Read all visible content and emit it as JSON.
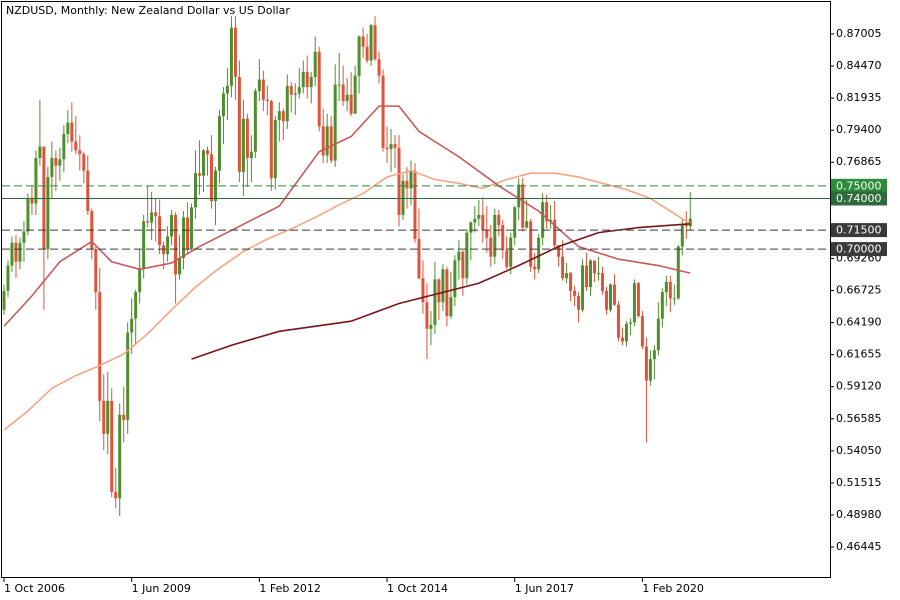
{
  "chart_data": {
    "type": "candlestick",
    "title": "NZDUSD, Monthly:  New Zealand Dollar vs US Dollar",
    "x": [
      "2006-10",
      "2006-11",
      "2006-12",
      "2007-01",
      "2007-02",
      "2007-03",
      "2007-04",
      "2007-05",
      "2007-06",
      "2007-07",
      "2007-08",
      "2007-09",
      "2007-10",
      "2007-11",
      "2007-12",
      "2008-01",
      "2008-02",
      "2008-03",
      "2008-04",
      "2008-05",
      "2008-06",
      "2008-07",
      "2008-08",
      "2008-09",
      "2008-10",
      "2008-11",
      "2008-12",
      "2009-01",
      "2009-02",
      "2009-03",
      "2009-04",
      "2009-05",
      "2009-06",
      "2009-07",
      "2009-08",
      "2009-09",
      "2009-10",
      "2009-11",
      "2009-12",
      "2010-01",
      "2010-02",
      "2010-03",
      "2010-04",
      "2010-05",
      "2010-06",
      "2010-07",
      "2010-08",
      "2010-09",
      "2010-10",
      "2010-11",
      "2010-12",
      "2011-01",
      "2011-02",
      "2011-03",
      "2011-04",
      "2011-05",
      "2011-06",
      "2011-07",
      "2011-08",
      "2011-09",
      "2011-10",
      "2011-11",
      "2011-12",
      "2012-01",
      "2012-02",
      "2012-03",
      "2012-04",
      "2012-05",
      "2012-06",
      "2012-07",
      "2012-08",
      "2012-09",
      "2012-10",
      "2012-11",
      "2012-12",
      "2013-01",
      "2013-02",
      "2013-03",
      "2013-04",
      "2013-05",
      "2013-06",
      "2013-07",
      "2013-08",
      "2013-09",
      "2013-10",
      "2013-11",
      "2013-12",
      "2014-01",
      "2014-02",
      "2014-03",
      "2014-04",
      "2014-05",
      "2014-06",
      "2014-07",
      "2014-08",
      "2014-09",
      "2014-10",
      "2014-11",
      "2014-12",
      "2015-01",
      "2015-02",
      "2015-03",
      "2015-04",
      "2015-05",
      "2015-06",
      "2015-07",
      "2015-08",
      "2015-09",
      "2015-10",
      "2015-11",
      "2015-12",
      "2016-01",
      "2016-02",
      "2016-03",
      "2016-04",
      "2016-05",
      "2016-06",
      "2016-07",
      "2016-08",
      "2016-09",
      "2016-10",
      "2016-11",
      "2016-12",
      "2017-01",
      "2017-02",
      "2017-03",
      "2017-04",
      "2017-05",
      "2017-06",
      "2017-07",
      "2017-08",
      "2017-09",
      "2017-10",
      "2017-11",
      "2017-12",
      "2018-01",
      "2018-02",
      "2018-03",
      "2018-04",
      "2018-05",
      "2018-06",
      "2018-07",
      "2018-08",
      "2018-09",
      "2018-10",
      "2018-11",
      "2018-12",
      "2019-01",
      "2019-02",
      "2019-03",
      "2019-04",
      "2019-05",
      "2019-06",
      "2019-07",
      "2019-08",
      "2019-09",
      "2019-10",
      "2019-11",
      "2019-12",
      "2020-01",
      "2020-02",
      "2020-03",
      "2020-04",
      "2020-05",
      "2020-06",
      "2020-07",
      "2020-08",
      "2020-09",
      "2020-10",
      "2020-11",
      "2020-12",
      "2021-01",
      "2021-02"
    ],
    "open": [
      0.652,
      0.667,
      0.687,
      0.705,
      0.69,
      0.705,
      0.714,
      0.74,
      0.736,
      0.772,
      0.781,
      0.7,
      0.757,
      0.772,
      0.766,
      0.771,
      0.791,
      0.8,
      0.785,
      0.778,
      0.775,
      0.762,
      0.73,
      0.7,
      0.666,
      0.58,
      0.554,
      0.58,
      0.508,
      0.503,
      0.569,
      0.565,
      0.634,
      0.645,
      0.666,
      0.685,
      0.722,
      0.721,
      0.729,
      0.726,
      0.703,
      0.696,
      0.71,
      0.727,
      0.68,
      0.693,
      0.725,
      0.7,
      0.733,
      0.76,
      0.758,
      0.778,
      0.775,
      0.738,
      0.762,
      0.805,
      0.823,
      0.829,
      0.875,
      0.836,
      0.761,
      0.803,
      0.772,
      0.777,
      0.825,
      0.834,
      0.818,
      0.817,
      0.756,
      0.802,
      0.809,
      0.801,
      0.829,
      0.822,
      0.823,
      0.828,
      0.84,
      0.828,
      0.836,
      0.856,
      0.797,
      0.774,
      0.797,
      0.77,
      0.83,
      0.83,
      0.817,
      0.822,
      0.807,
      0.837,
      0.868,
      0.86,
      0.849,
      0.877,
      0.85,
      0.837,
      0.78,
      0.779,
      0.783,
      0.78,
      0.727,
      0.754,
      0.748,
      0.762,
      0.708,
      0.677,
      0.658,
      0.637,
      0.64,
      0.676,
      0.658,
      0.684,
      0.647,
      0.662,
      0.691,
      0.698,
      0.677,
      0.713,
      0.721,
      0.724,
      0.727,
      0.715,
      0.709,
      0.694,
      0.727,
      0.719,
      0.699,
      0.686,
      0.709,
      0.733,
      0.751,
      0.717,
      0.722,
      0.686,
      0.684,
      0.709,
      0.737,
      0.722,
      0.723,
      0.703,
      0.694,
      0.677,
      0.681,
      0.667,
      0.663,
      0.652,
      0.687,
      0.67,
      0.691,
      0.681,
      0.681,
      0.667,
      0.652,
      0.672,
      0.656,
      0.63,
      0.627,
      0.641,
      0.642,
      0.673,
      0.647,
      0.623,
      0.596,
      0.613,
      0.62,
      0.645,
      0.666,
      0.674,
      0.661,
      0.661,
      0.702,
      0.719,
      0.718
    ],
    "high": [
      0.672,
      0.691,
      0.71,
      0.711,
      0.709,
      0.722,
      0.744,
      0.75,
      0.778,
      0.818,
      0.781,
      0.765,
      0.785,
      0.778,
      0.78,
      0.798,
      0.81,
      0.816,
      0.805,
      0.79,
      0.777,
      0.774,
      0.732,
      0.702,
      0.685,
      0.601,
      0.603,
      0.59,
      0.527,
      0.578,
      0.591,
      0.642,
      0.661,
      0.668,
      0.7,
      0.727,
      0.75,
      0.745,
      0.74,
      0.739,
      0.706,
      0.718,
      0.731,
      0.729,
      0.711,
      0.73,
      0.737,
      0.736,
      0.778,
      0.786,
      0.779,
      0.781,
      0.79,
      0.765,
      0.81,
      0.828,
      0.843,
      0.884,
      0.884,
      0.849,
      0.818,
      0.807,
      0.79,
      0.827,
      0.85,
      0.841,
      0.829,
      0.818,
      0.805,
      0.816,
      0.811,
      0.838,
      0.832,
      0.831,
      0.843,
      0.849,
      0.853,
      0.84,
      0.868,
      0.86,
      0.811,
      0.807,
      0.805,
      0.846,
      0.855,
      0.845,
      0.835,
      0.84,
      0.845,
      0.869,
      0.875,
      0.87,
      0.878,
      0.884,
      0.856,
      0.842,
      0.797,
      0.795,
      0.79,
      0.79,
      0.759,
      0.765,
      0.77,
      0.768,
      0.732,
      0.691,
      0.673,
      0.651,
      0.69,
      0.677,
      0.688,
      0.686,
      0.682,
      0.695,
      0.707,
      0.699,
      0.716,
      0.722,
      0.734,
      0.739,
      0.741,
      0.734,
      0.719,
      0.732,
      0.731,
      0.723,
      0.71,
      0.713,
      0.734,
      0.756,
      0.756,
      0.739,
      0.724,
      0.697,
      0.712,
      0.744,
      0.743,
      0.735,
      0.738,
      0.703,
      0.707,
      0.689,
      0.682,
      0.671,
      0.666,
      0.692,
      0.697,
      0.692,
      0.691,
      0.694,
      0.686,
      0.67,
      0.673,
      0.68,
      0.659,
      0.638,
      0.643,
      0.645,
      0.676,
      0.674,
      0.651,
      0.63,
      0.62,
      0.624,
      0.658,
      0.669,
      0.679,
      0.679,
      0.672,
      0.703,
      0.724,
      0.73,
      0.745
    ],
    "low": [
      0.648,
      0.662,
      0.682,
      0.677,
      0.684,
      0.69,
      0.711,
      0.727,
      0.727,
      0.766,
      0.652,
      0.692,
      0.74,
      0.746,
      0.754,
      0.761,
      0.784,
      0.777,
      0.775,
      0.762,
      0.752,
      0.727,
      0.692,
      0.652,
      0.564,
      0.541,
      0.538,
      0.504,
      0.495,
      0.489,
      0.547,
      0.554,
      0.617,
      0.625,
      0.657,
      0.677,
      0.717,
      0.707,
      0.706,
      0.696,
      0.684,
      0.69,
      0.703,
      0.657,
      0.676,
      0.684,
      0.697,
      0.699,
      0.724,
      0.743,
      0.745,
      0.758,
      0.732,
      0.719,
      0.752,
      0.783,
      0.802,
      0.82,
      0.818,
      0.753,
      0.742,
      0.749,
      0.753,
      0.772,
      0.817,
      0.809,
      0.806,
      0.746,
      0.747,
      0.785,
      0.786,
      0.795,
      0.808,
      0.806,
      0.819,
      0.823,
      0.819,
      0.815,
      0.829,
      0.793,
      0.768,
      0.768,
      0.768,
      0.765,
      0.817,
      0.813,
      0.809,
      0.805,
      0.807,
      0.823,
      0.851,
      0.847,
      0.845,
      0.849,
      0.831,
      0.777,
      0.768,
      0.761,
      0.764,
      0.718,
      0.723,
      0.732,
      0.735,
      0.705,
      0.676,
      0.649,
      0.613,
      0.624,
      0.633,
      0.644,
      0.651,
      0.639,
      0.645,
      0.655,
      0.676,
      0.663,
      0.672,
      0.691,
      0.713,
      0.718,
      0.705,
      0.697,
      0.686,
      0.688,
      0.71,
      0.692,
      0.684,
      0.68,
      0.703,
      0.723,
      0.714,
      0.716,
      0.682,
      0.676,
      0.681,
      0.703,
      0.716,
      0.716,
      0.7,
      0.686,
      0.675,
      0.673,
      0.659,
      0.655,
      0.642,
      0.65,
      0.667,
      0.663,
      0.674,
      0.675,
      0.664,
      0.648,
      0.65,
      0.655,
      0.627,
      0.624,
      0.623,
      0.632,
      0.639,
      0.646,
      0.621,
      0.547,
      0.592,
      0.597,
      0.616,
      0.638,
      0.655,
      0.65,
      0.656,
      0.66,
      0.695,
      0.708,
      0.715
    ],
    "close": [
      0.667,
      0.687,
      0.705,
      0.69,
      0.705,
      0.714,
      0.74,
      0.736,
      0.772,
      0.781,
      0.7,
      0.757,
      0.772,
      0.766,
      0.771,
      0.791,
      0.8,
      0.785,
      0.778,
      0.775,
      0.762,
      0.73,
      0.7,
      0.666,
      0.58,
      0.554,
      0.58,
      0.508,
      0.503,
      0.569,
      0.565,
      0.634,
      0.645,
      0.666,
      0.685,
      0.722,
      0.721,
      0.729,
      0.726,
      0.703,
      0.696,
      0.71,
      0.727,
      0.68,
      0.693,
      0.725,
      0.7,
      0.733,
      0.76,
      0.758,
      0.778,
      0.775,
      0.738,
      0.762,
      0.805,
      0.823,
      0.829,
      0.875,
      0.836,
      0.761,
      0.803,
      0.772,
      0.777,
      0.825,
      0.834,
      0.818,
      0.817,
      0.756,
      0.802,
      0.809,
      0.801,
      0.829,
      0.822,
      0.823,
      0.828,
      0.84,
      0.828,
      0.836,
      0.856,
      0.797,
      0.774,
      0.797,
      0.77,
      0.83,
      0.83,
      0.817,
      0.822,
      0.807,
      0.837,
      0.868,
      0.86,
      0.849,
      0.877,
      0.85,
      0.837,
      0.78,
      0.779,
      0.783,
      0.78,
      0.727,
      0.754,
      0.748,
      0.762,
      0.708,
      0.677,
      0.658,
      0.637,
      0.64,
      0.676,
      0.658,
      0.684,
      0.647,
      0.662,
      0.691,
      0.698,
      0.677,
      0.713,
      0.721,
      0.724,
      0.727,
      0.715,
      0.709,
      0.694,
      0.727,
      0.719,
      0.699,
      0.686,
      0.709,
      0.733,
      0.751,
      0.717,
      0.722,
      0.686,
      0.684,
      0.709,
      0.737,
      0.722,
      0.723,
      0.703,
      0.694,
      0.677,
      0.681,
      0.667,
      0.663,
      0.652,
      0.687,
      0.67,
      0.691,
      0.681,
      0.681,
      0.667,
      0.652,
      0.672,
      0.656,
      0.63,
      0.627,
      0.641,
      0.642,
      0.673,
      0.647,
      0.623,
      0.596,
      0.613,
      0.62,
      0.645,
      0.666,
      0.674,
      0.661,
      0.661,
      0.702,
      0.719,
      0.718,
      0.724
    ],
    "up_color": "#4e8f2c",
    "down_color": "#e0533a",
    "lines": [
      {
        "color": "#f4a582",
        "x": [
          "2006-10",
          "2007-04",
          "2007-10",
          "2008-04",
          "2008-10",
          "2009-04",
          "2009-10",
          "2010-04",
          "2010-10",
          "2011-04",
          "2011-10",
          "2012-04",
          "2012-10",
          "2013-04",
          "2013-10",
          "2014-04",
          "2014-10",
          "2015-04",
          "2015-10",
          "2016-04",
          "2016-10",
          "2017-04",
          "2017-10",
          "2018-04",
          "2018-10",
          "2019-04",
          "2019-10",
          "2020-04",
          "2020-10",
          "2021-02"
        ],
        "values": [
          0.557,
          0.572,
          0.59,
          0.6,
          0.608,
          0.617,
          0.633,
          0.652,
          0.67,
          0.685,
          0.698,
          0.708,
          0.716,
          0.725,
          0.735,
          0.744,
          0.757,
          0.762,
          0.755,
          0.752,
          0.748,
          0.755,
          0.76,
          0.76,
          0.757,
          0.752,
          0.747,
          0.74,
          0.728,
          0.72
        ]
      },
      {
        "color": "#c9585a",
        "x": [
          "2006-10",
          "2007-05",
          "2007-12",
          "2008-08",
          "2009-01",
          "2009-08",
          "2010-04",
          "2010-11",
          "2011-09",
          "2012-07",
          "2013-05",
          "2014-01",
          "2014-08",
          "2015-01",
          "2015-06",
          "2016-04",
          "2017-02",
          "2017-12",
          "2018-10",
          "2019-08",
          "2020-06",
          "2021-02"
        ],
        "values": [
          0.639,
          0.663,
          0.69,
          0.706,
          0.69,
          0.684,
          0.689,
          0.702,
          0.718,
          0.734,
          0.777,
          0.789,
          0.813,
          0.813,
          0.793,
          0.773,
          0.75,
          0.73,
          0.702,
          0.692,
          0.687,
          0.681
        ]
      },
      {
        "color": "#7a1515",
        "x": [
          "2010-09",
          "2011-07",
          "2012-07",
          "2014-01",
          "2015-01",
          "2015-11",
          "2016-09",
          "2017-07",
          "2018-05",
          "2019-03",
          "2020-01",
          "2021-02"
        ],
        "values": [
          0.613,
          0.624,
          0.635,
          0.643,
          0.657,
          0.665,
          0.673,
          0.687,
          0.702,
          0.713,
          0.717,
          0.72
        ]
      }
    ],
    "price_levels": [
      {
        "value": 0.75,
        "label": "0.75000",
        "color": "#2e8b3a",
        "dashed": true
      },
      {
        "value": 0.74,
        "label": "0.74000",
        "color": "#2e6b3a",
        "dashed": false
      },
      {
        "value": 0.715,
        "label": "0.71500",
        "color": "#3a3a3a",
        "dashed": true
      },
      {
        "value": 0.7,
        "label": "0.70000",
        "color": "#3a3a3a",
        "dashed": true
      }
    ],
    "ylim": [
      0.4408,
      0.8953
    ],
    "yticks": [
      0.87005,
      {
        "value": 0.8447,
        "label": "0.84470"
      },
      0.81935,
      {
        "value": 0.794,
        "label": "0.79400"
      },
      0.76865,
      {
        "value": 0.6926,
        "label": "0.69260"
      },
      0.66725,
      {
        "value": 0.6419,
        "label": "0.64190"
      },
      0.61655,
      {
        "value": 0.5912,
        "label": "0.59120"
      },
      0.56585,
      {
        "value": 0.5405,
        "label": "0.54050"
      },
      0.51515,
      {
        "value": 0.4898,
        "label": "0.48980"
      },
      0.46445
    ],
    "xticks": [
      {
        "value": "2006-10",
        "label": "1 Oct 2006"
      },
      {
        "value": "2009-06",
        "label": "1 Jun 2009"
      },
      {
        "value": "2012-02",
        "label": "1 Feb 2012"
      },
      {
        "value": "2014-10",
        "label": "1 Oct 2014"
      },
      {
        "value": "2017-06",
        "label": "1 Jun 2017"
      },
      {
        "value": "2020-02",
        "label": "1 Feb 2020"
      }
    ]
  }
}
